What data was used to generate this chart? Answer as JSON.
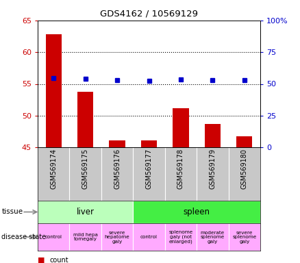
{
  "title": "GDS4162 / 10569129",
  "samples": [
    "GSM569174",
    "GSM569175",
    "GSM569176",
    "GSM569177",
    "GSM569178",
    "GSM569179",
    "GSM569180"
  ],
  "count_values": [
    62.8,
    53.8,
    46.1,
    46.1,
    51.2,
    48.7,
    46.7
  ],
  "percentile_values": [
    54.8,
    54.0,
    53.2,
    52.4,
    53.5,
    53.2,
    53.2
  ],
  "ylim_left": [
    45,
    65
  ],
  "ylim_right": [
    0,
    100
  ],
  "yticks_left": [
    45,
    50,
    55,
    60,
    65
  ],
  "yticks_right": [
    0,
    25,
    50,
    75,
    100
  ],
  "ytick_labels_left": [
    "45",
    "50",
    "55",
    "60",
    "65"
  ],
  "ytick_labels_right": [
    "0",
    "25",
    "50",
    "75",
    "100%"
  ],
  "bar_color": "#cc0000",
  "dot_color": "#0000cc",
  "tissue_liver_color": "#bbffbb",
  "tissue_spleen_color": "#44ee44",
  "disease_color": "#ffaaff",
  "xlabels_bg": "#c8c8c8",
  "bg_color": "#ffffff",
  "tick_color_left": "#cc0000",
  "tick_color_right": "#0000cc",
  "grid_lines": [
    50,
    55,
    60
  ],
  "tissue_data": [
    {
      "label": "liver",
      "start": 0,
      "end": 3,
      "color": "#bbffbb"
    },
    {
      "label": "spleen",
      "start": 3,
      "end": 7,
      "color": "#44ee44"
    }
  ],
  "disease_data": [
    {
      "label": "control",
      "start": 0,
      "end": 1
    },
    {
      "label": "mild hepa\ntomegaly",
      "start": 1,
      "end": 2
    },
    {
      "label": "severe\nhepatome\ngaly",
      "start": 2,
      "end": 3
    },
    {
      "label": "control",
      "start": 3,
      "end": 4
    },
    {
      "label": "splenome\ngaly (not\nenlarged)",
      "start": 4,
      "end": 5
    },
    {
      "label": "moderate\nsplenome\ngaly",
      "start": 5,
      "end": 6
    },
    {
      "label": "severe\nsplenome\ngaly",
      "start": 6,
      "end": 7
    }
  ]
}
